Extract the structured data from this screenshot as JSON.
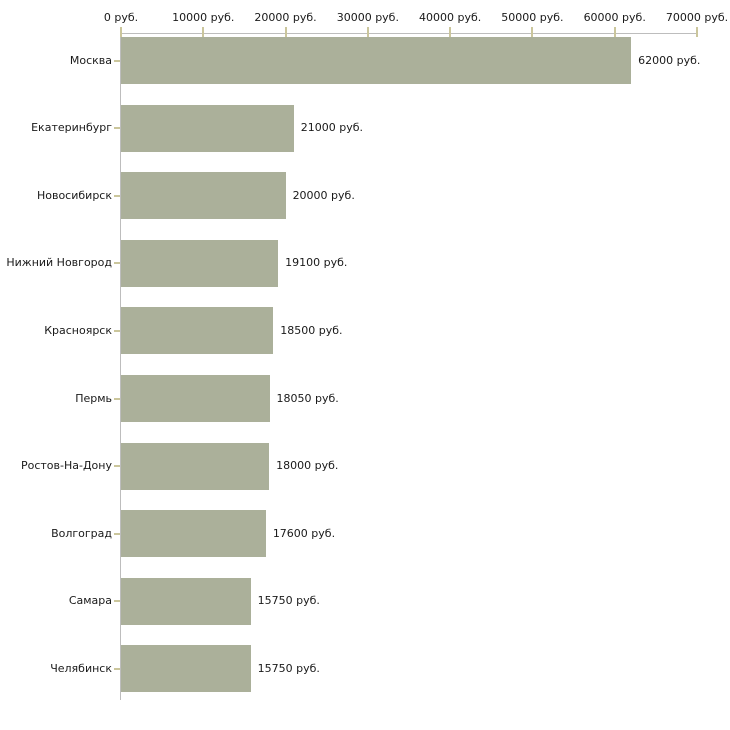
{
  "chart_data": {
    "type": "bar",
    "orientation": "horizontal",
    "title": "",
    "xlabel": "",
    "ylabel": "",
    "categories": [
      "Москва",
      "Екатеринбург",
      "Новосибирск",
      "Нижний Новгород",
      "Красноярск",
      "Пермь",
      "Ростов-На-Дону",
      "Волгоград",
      "Самара",
      "Челябинск"
    ],
    "values": [
      62000,
      21000,
      20000,
      19100,
      18500,
      18050,
      18000,
      17600,
      15750,
      15750
    ],
    "value_labels": [
      "62000 руб.",
      "21000 руб.",
      "20000 руб.",
      "19100 руб.",
      "18500 руб.",
      "18050 руб.",
      "18000 руб.",
      "17600 руб.",
      "15750 руб.",
      "15750 руб."
    ],
    "xlim": [
      0,
      70000
    ],
    "x_ticks": [
      {
        "value": 0,
        "label": "0 руб."
      },
      {
        "value": 10000,
        "label": "10000 руб."
      },
      {
        "value": 20000,
        "label": "20000 руб."
      },
      {
        "value": 30000,
        "label": "30000 руб."
      },
      {
        "value": 40000,
        "label": "40000 руб."
      },
      {
        "value": 50000,
        "label": "50000 руб."
      },
      {
        "value": 60000,
        "label": "60000 руб."
      },
      {
        "value": 70000,
        "label": "70000 руб."
      }
    ],
    "grid": false,
    "legend": "none",
    "colors": {
      "bar_fill": "#abb09a",
      "axis_line": "#bdbdbd",
      "tick_mark": "#cbc69c",
      "text": "#1a1a1a",
      "background": "#ffffff"
    }
  }
}
